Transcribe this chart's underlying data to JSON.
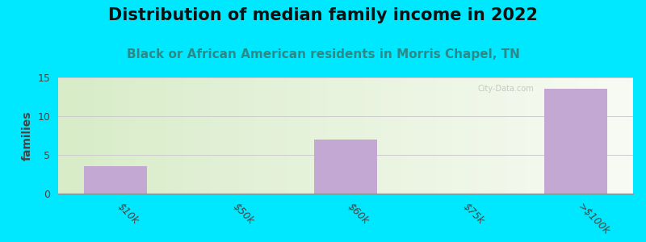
{
  "title": "Distribution of median family income in 2022",
  "subtitle": "Black or African American residents in Morris Chapel, TN",
  "categories": [
    "$10k",
    "$50k",
    "$60k",
    "$75k",
    ">$100k"
  ],
  "values": [
    3.5,
    0,
    7,
    0,
    13.5
  ],
  "bar_color": "#c4a8d4",
  "bar_edgecolor": "none",
  "ylabel": "families",
  "ylim": [
    0,
    15
  ],
  "yticks": [
    0,
    5,
    10,
    15
  ],
  "background_color": "#00e8ff",
  "plot_bg_left": "#d8ecc8",
  "plot_bg_right": "#f0f5ea",
  "title_fontsize": 15,
  "subtitle_fontsize": 11,
  "subtitle_color": "#2a8a8a",
  "ylabel_fontsize": 10,
  "xtick_fontsize": 9,
  "ytick_fontsize": 9,
  "grid_color": "#cccccc",
  "watermark": "City-Data.com"
}
